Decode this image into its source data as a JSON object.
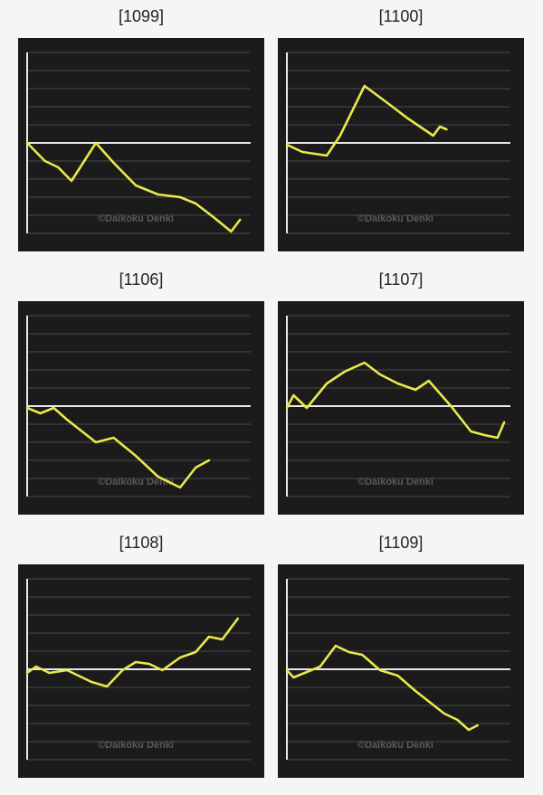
{
  "chart_data": [
    {
      "type": "line",
      "title": "[1099]",
      "watermark": "©Daikoku Denki",
      "color": "#e9e94c",
      "xlim": [
        0,
        100
      ],
      "ylim": [
        -5,
        5
      ],
      "x": [
        0,
        8,
        14,
        20,
        31,
        39,
        49,
        59,
        69,
        76,
        84,
        92,
        96
      ],
      "values": [
        0,
        -1,
        -1.35,
        -2.1,
        0,
        -1.1,
        -2.35,
        -2.85,
        -3,
        -3.35,
        -4.1,
        -4.9,
        -4.25
      ]
    },
    {
      "type": "line",
      "title": "[1100]",
      "watermark": "©Daikoku Denki",
      "color": "#e9e94c",
      "xlim": [
        0,
        100
      ],
      "ylim": [
        -5,
        5
      ],
      "x": [
        0,
        7,
        18,
        24,
        35,
        46,
        54,
        66,
        69,
        72
      ],
      "values": [
        -0.1,
        -0.5,
        -0.7,
        0.4,
        3.15,
        2.15,
        1.4,
        0.4,
        0.9,
        0.75
      ]
    },
    {
      "type": "line",
      "title": "[1106]",
      "watermark": "©Daikoku Denki",
      "color": "#e9e94c",
      "xlim": [
        0,
        100
      ],
      "ylim": [
        -5,
        5
      ],
      "x": [
        0,
        6,
        12,
        18,
        31,
        39,
        49,
        59,
        69,
        76,
        82
      ],
      "values": [
        -0.1,
        -0.4,
        -0.1,
        -0.75,
        -2,
        -1.75,
        -2.75,
        -3.9,
        -4.5,
        -3.4,
        -3
      ]
    },
    {
      "type": "line",
      "title": "[1107]",
      "watermark": "©Daikoku Denki",
      "color": "#e9e94c",
      "xlim": [
        0,
        100
      ],
      "ylim": [
        -5,
        5
      ],
      "x": [
        0,
        3,
        9,
        18,
        26,
        35,
        42,
        50,
        58,
        64,
        74,
        83,
        89,
        95,
        98
      ],
      "values": [
        -0.1,
        0.6,
        -0.1,
        1.25,
        1.9,
        2.4,
        1.75,
        1.25,
        0.9,
        1.4,
        0,
        -1.4,
        -1.6,
        -1.75,
        -0.9
      ]
    },
    {
      "type": "line",
      "title": "[1108]",
      "watermark": "©Daikoku Denki",
      "color": "#e9e94c",
      "xlim": [
        0,
        100
      ],
      "ylim": [
        -5,
        5
      ],
      "x": [
        0,
        4,
        10,
        18,
        29,
        36,
        43,
        49,
        55,
        61,
        69,
        76,
        82,
        88,
        95
      ],
      "values": [
        -0.2,
        0.15,
        -0.2,
        -0.05,
        -0.7,
        -0.95,
        -0.05,
        0.4,
        0.3,
        -0.05,
        0.65,
        0.95,
        1.8,
        1.65,
        2.8
      ]
    },
    {
      "type": "line",
      "title": "[1109]",
      "watermark": "©Daikoku Denki",
      "color": "#e9e94c",
      "xlim": [
        0,
        100
      ],
      "ylim": [
        -5,
        5
      ],
      "x": [
        0,
        3,
        11,
        15,
        22,
        28,
        34,
        42,
        50,
        58,
        71,
        77,
        82,
        86
      ],
      "values": [
        -0.05,
        -0.45,
        -0.05,
        0.15,
        1.3,
        0.95,
        0.8,
        -0.05,
        -0.35,
        -1.2,
        -2.45,
        -2.8,
        -3.35,
        -3.1
      ]
    }
  ]
}
